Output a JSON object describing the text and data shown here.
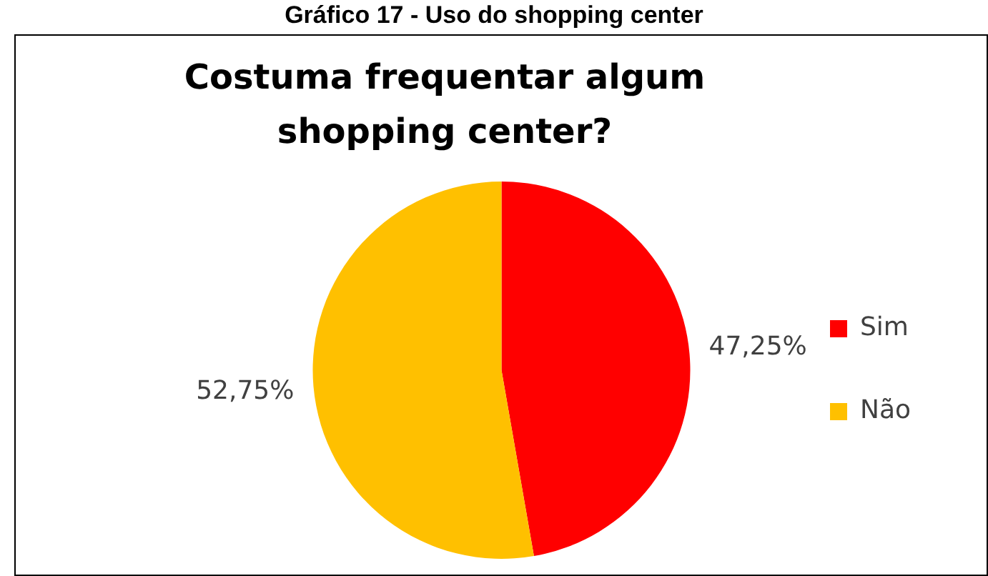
{
  "chart_data": {
    "type": "pie",
    "title": "Costuma frequentar algum shopping center?",
    "annotations": [
      "Gráfico 17 - Uso do shopping center"
    ],
    "categories": [
      "Sim",
      "Não"
    ],
    "values": [
      47.25,
      52.75
    ],
    "colors": [
      "#ff0000",
      "#ffc000"
    ],
    "value_labels": [
      "47,25%",
      "52,75%"
    ],
    "legend": "right"
  }
}
